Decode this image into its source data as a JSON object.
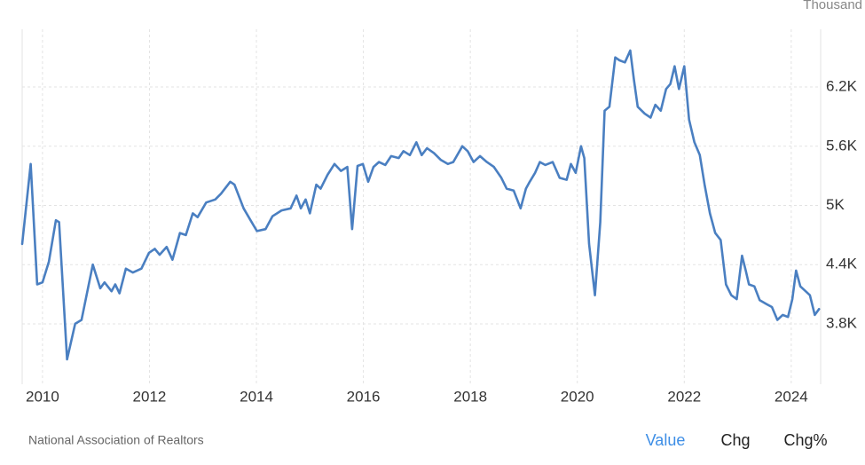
{
  "chart_data": {
    "type": "line",
    "unit_label": "Thousand",
    "color": "#4a7fc1",
    "grid": true,
    "x": [
      2009.62,
      2009.78,
      2009.9,
      2010.0,
      2010.12,
      2010.25,
      2010.31,
      2010.46,
      2010.61,
      2010.73,
      2010.94,
      2011.08,
      2011.16,
      2011.29,
      2011.36,
      2011.44,
      2011.56,
      2011.69,
      2011.85,
      2011.99,
      2012.1,
      2012.19,
      2012.32,
      2012.43,
      2012.57,
      2012.68,
      2012.81,
      2012.9,
      2013.06,
      2013.23,
      2013.34,
      2013.51,
      2013.59,
      2013.76,
      2013.89,
      2014.01,
      2014.17,
      2014.3,
      2014.47,
      2014.64,
      2014.75,
      2014.83,
      2014.92,
      2015.0,
      2015.12,
      2015.2,
      2015.33,
      2015.46,
      2015.58,
      2015.7,
      2015.79,
      2015.89,
      2015.99,
      2016.09,
      2016.19,
      2016.29,
      2016.41,
      2016.52,
      2016.66,
      2016.75,
      2016.87,
      2016.99,
      2017.09,
      2017.19,
      2017.32,
      2017.45,
      2017.58,
      2017.68,
      2017.85,
      2017.95,
      2018.06,
      2018.18,
      2018.31,
      2018.44,
      2018.58,
      2018.68,
      2018.81,
      2018.94,
      2019.04,
      2019.11,
      2019.21,
      2019.3,
      2019.4,
      2019.54,
      2019.67,
      2019.8,
      2019.88,
      2019.97,
      2020.07,
      2020.13,
      2020.22,
      2020.33,
      2020.43,
      2020.51,
      2020.6,
      2020.71,
      2020.79,
      2020.89,
      2020.99,
      2021.06,
      2021.13,
      2021.26,
      2021.37,
      2021.46,
      2021.56,
      2021.66,
      2021.74,
      2021.82,
      2021.9,
      2022.0,
      2022.09,
      2022.19,
      2022.29,
      2022.38,
      2022.48,
      2022.58,
      2022.68,
      2022.78,
      2022.88,
      2022.98,
      2023.08,
      2023.15,
      2023.21,
      2023.31,
      2023.41,
      2023.54,
      2023.64,
      2023.74,
      2023.84,
      2023.94,
      2024.02,
      2024.09,
      2024.17,
      2024.27,
      2024.35,
      2024.44,
      2024.52
    ],
    "values": [
      4610,
      5420,
      4200,
      4220,
      4430,
      4850,
      4830,
      3440,
      3800,
      3840,
      4400,
      4160,
      4220,
      4130,
      4200,
      4110,
      4360,
      4320,
      4360,
      4520,
      4560,
      4500,
      4580,
      4450,
      4720,
      4700,
      4920,
      4880,
      5030,
      5060,
      5120,
      5240,
      5210,
      4970,
      4850,
      4740,
      4760,
      4890,
      4950,
      4970,
      5100,
      4970,
      5060,
      4920,
      5210,
      5170,
      5310,
      5420,
      5350,
      5390,
      4760,
      5400,
      5420,
      5240,
      5390,
      5440,
      5410,
      5500,
      5480,
      5550,
      5510,
      5640,
      5510,
      5580,
      5530,
      5460,
      5420,
      5440,
      5600,
      5550,
      5440,
      5500,
      5440,
      5390,
      5280,
      5170,
      5150,
      4970,
      5170,
      5240,
      5330,
      5440,
      5410,
      5440,
      5280,
      5260,
      5420,
      5330,
      5600,
      5480,
      4610,
      4090,
      4830,
      5960,
      6000,
      6500,
      6470,
      6450,
      6570,
      6270,
      6000,
      5930,
      5890,
      6020,
      5960,
      6180,
      6230,
      6410,
      6180,
      6410,
      5870,
      5640,
      5510,
      5210,
      4920,
      4720,
      4650,
      4200,
      4090,
      4050,
      4490,
      4340,
      4200,
      4180,
      4040,
      4000,
      3970,
      3840,
      3890,
      3870,
      4050,
      4340,
      4180,
      4130,
      4090,
      3890,
      3950
    ],
    "xlim": [
      2009.62,
      2024.55
    ],
    "xticks": [
      2010,
      2012,
      2014,
      2016,
      2018,
      2020,
      2022,
      2024
    ],
    "ylim": [
      3188,
      6785
    ],
    "yticks": [
      {
        "value": 3800,
        "label": "3.8K"
      },
      {
        "value": 4400,
        "label": "4.4K"
      },
      {
        "value": 5000,
        "label": "5K"
      },
      {
        "value": 5600,
        "label": "5.6K"
      },
      {
        "value": 6200,
        "label": "6.2K"
      }
    ]
  },
  "footer": {
    "source": "National Association of Realtors",
    "buttons": [
      "Value",
      "Chg",
      "Chg%"
    ]
  }
}
